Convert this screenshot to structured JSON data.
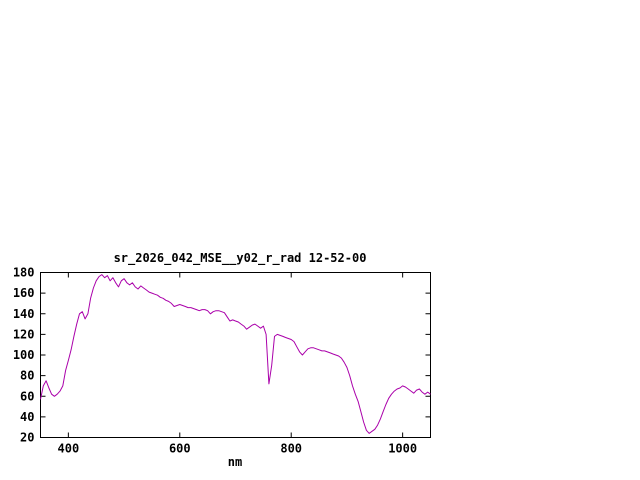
{
  "chart_data": {
    "type": "line",
    "title": "sr_2026_042_MSE__y02_r_rad 12-52-00",
    "xlabel": "nm",
    "ylabel": "",
    "xlim": [
      350,
      1050
    ],
    "ylim": [
      20,
      180
    ],
    "x_ticks": [
      400,
      600,
      800,
      1000
    ],
    "y_ticks": [
      20,
      40,
      60,
      80,
      100,
      120,
      140,
      160,
      180
    ],
    "grid": false,
    "legend_position": "none",
    "line_color": "#aa00aa",
    "axis_color": "#000000",
    "background_color": "#ffffff",
    "series": [
      {
        "name": "sr_2026_042_MSE__y02_r_rad",
        "x": [
          350,
          355,
          360,
          365,
          370,
          375,
          380,
          385,
          390,
          395,
          400,
          405,
          410,
          415,
          420,
          425,
          430,
          435,
          440,
          445,
          450,
          455,
          460,
          465,
          470,
          475,
          480,
          485,
          490,
          495,
          500,
          505,
          510,
          515,
          520,
          525,
          530,
          535,
          540,
          545,
          550,
          555,
          560,
          565,
          570,
          575,
          580,
          585,
          590,
          595,
          600,
          605,
          610,
          615,
          620,
          625,
          630,
          635,
          640,
          645,
          650,
          655,
          660,
          665,
          670,
          675,
          680,
          685,
          690,
          695,
          700,
          705,
          710,
          715,
          720,
          725,
          730,
          735,
          740,
          745,
          750,
          755,
          760,
          765,
          770,
          775,
          780,
          785,
          790,
          795,
          800,
          805,
          810,
          815,
          820,
          825,
          830,
          835,
          840,
          845,
          850,
          855,
          860,
          865,
          870,
          875,
          880,
          885,
          890,
          895,
          900,
          905,
          910,
          915,
          920,
          925,
          930,
          935,
          940,
          945,
          950,
          955,
          960,
          965,
          970,
          975,
          980,
          985,
          990,
          995,
          1000,
          1005,
          1010,
          1015,
          1020,
          1025,
          1030,
          1035,
          1040,
          1045,
          1050
        ],
        "y": [
          57,
          70,
          75,
          68,
          62,
          60,
          62,
          65,
          70,
          85,
          95,
          105,
          118,
          130,
          140,
          142,
          135,
          140,
          155,
          165,
          172,
          176,
          178,
          175,
          177,
          172,
          175,
          170,
          166,
          172,
          174,
          170,
          168,
          170,
          166,
          164,
          167,
          165,
          163,
          161,
          160,
          159,
          158,
          156,
          155,
          153,
          152,
          150,
          147,
          148,
          149,
          148,
          147,
          146,
          146,
          145,
          144,
          143,
          144,
          144,
          143,
          140,
          142,
          143,
          143,
          142,
          141,
          137,
          133,
          134,
          133,
          132,
          130,
          128,
          125,
          127,
          129,
          130,
          128,
          126,
          128,
          120,
          72,
          90,
          118,
          120,
          119,
          118,
          117,
          116,
          115,
          113,
          108,
          103,
          100,
          103,
          106,
          107,
          107,
          106,
          105,
          104,
          104,
          103,
          102,
          101,
          100,
          99,
          97,
          93,
          88,
          80,
          70,
          62,
          55,
          45,
          35,
          27,
          24,
          26,
          28,
          32,
          38,
          45,
          52,
          58,
          62,
          65,
          67,
          68,
          70,
          69,
          67,
          65,
          63,
          66,
          67,
          64,
          62,
          64,
          62
        ]
      }
    ]
  }
}
